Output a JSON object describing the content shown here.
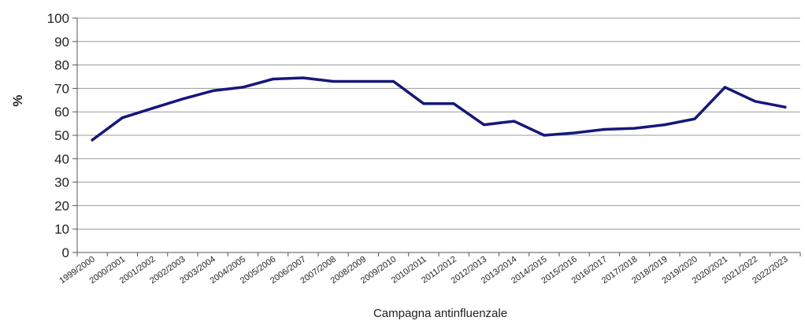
{
  "chart_data": {
    "type": "line",
    "title": "",
    "xlabel": "Campagna antinfluenzale",
    "ylabel": "%",
    "ylim": [
      0,
      100
    ],
    "yticks": [
      0,
      10,
      20,
      30,
      40,
      50,
      60,
      70,
      80,
      90,
      100
    ],
    "grid": true,
    "legend": "none",
    "categories": [
      "1999/2000",
      "2000/2001",
      "2001/2002",
      "2002/2003",
      "2003/2004",
      "2004/2005",
      "2005/2006",
      "2006/2007",
      "2007/2008",
      "2008/2009",
      "2009/2010",
      "2010/2011",
      "2011/2012",
      "2012/2013",
      "2013/2014",
      "2014/2015",
      "2015/2016",
      "2016/2017",
      "2017/2018",
      "2018/2019",
      "2019/2020",
      "2020/2021",
      "2021/2022",
      "2022/2023"
    ],
    "series": [
      {
        "values": [
          48,
          57.5,
          61.5,
          65.5,
          69,
          70.5,
          74,
          74.5,
          73,
          73,
          73,
          63.5,
          63.5,
          54.5,
          56,
          50,
          51,
          52.5,
          53,
          54.5,
          57,
          70.5,
          64.5,
          62
        ],
        "color": "#15177a"
      }
    ]
  }
}
